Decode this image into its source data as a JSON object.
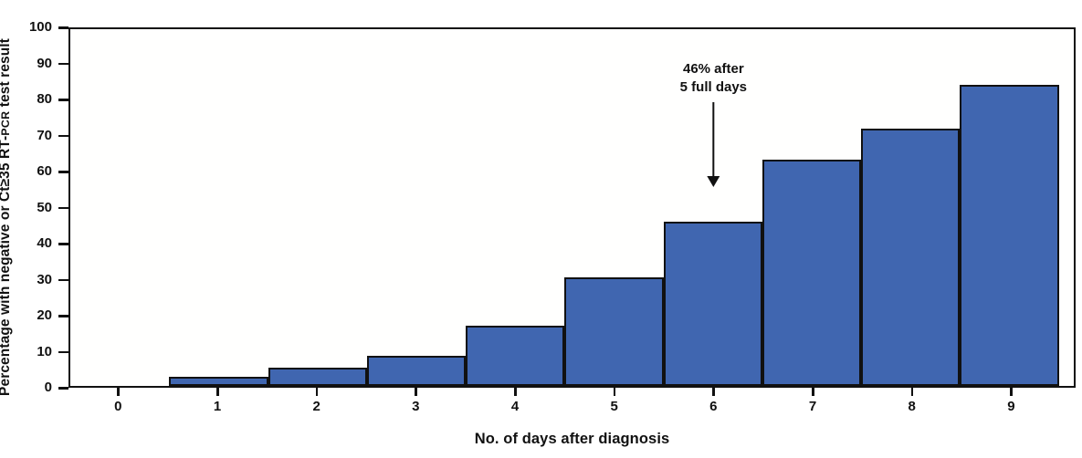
{
  "figure": {
    "background_color": "#ffffff",
    "text_color": "#111111"
  },
  "chart_data": {
    "type": "bar",
    "title": "",
    "categories": [
      0,
      1,
      2,
      3,
      4,
      5,
      6,
      7,
      8,
      9
    ],
    "values": [
      0,
      2.5,
      5,
      8.5,
      17,
      30.5,
      46,
      63.5,
      72,
      84.5
    ],
    "xlabel": "No. of days after diagnosis",
    "ylabel": "Percentage with negative or Ct≥35 RT-PCR test result",
    "ylabel_parts": {
      "pre": "Percentage with negative or Ct≥35 RT-",
      "pcr_smallcaps": "PCR",
      "post": " test result"
    },
    "xlim": [
      -0.5,
      9.65
    ],
    "ylim": [
      0,
      100
    ],
    "yticks": [
      0,
      10,
      20,
      30,
      40,
      50,
      60,
      70,
      80,
      90,
      100
    ],
    "grid": "off",
    "legend": "none",
    "bar_color": "#4066B0",
    "bar_border_color": "#111111",
    "axis_color": "#111111",
    "annotation": {
      "line1": "46% after",
      "line2": "5 full days",
      "arrow_target_day": 6,
      "arrow_target_value": 46
    }
  }
}
